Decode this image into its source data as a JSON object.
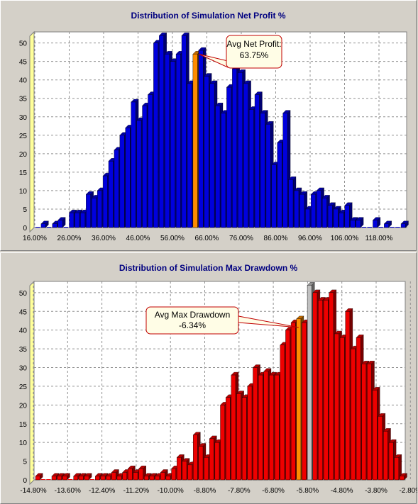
{
  "chart_data": [
    {
      "type": "bar",
      "title": "Distribution of Simulation Net Profit %",
      "xlabel": "",
      "ylabel": "",
      "ylim": [
        0,
        53
      ],
      "yticks": [
        "0",
        "5",
        "10",
        "15",
        "20",
        "25",
        "30",
        "35",
        "40",
        "45",
        "50"
      ],
      "xticks": [
        "16.00%",
        "26.00%",
        "36.00%",
        "46.00%",
        "56.00%",
        "66.00%",
        "76.00%",
        "86.00%",
        "96.00%",
        "106.00%",
        "118.00%"
      ],
      "values": [
        0,
        1,
        0,
        1,
        2,
        0,
        4,
        4,
        4,
        9,
        8,
        10,
        14,
        18,
        21,
        25,
        27,
        34,
        29,
        33,
        36,
        50,
        52,
        47,
        45,
        47,
        52,
        39,
        47,
        48,
        41,
        39,
        33,
        31,
        38,
        43,
        42,
        39,
        32,
        36,
        31,
        28,
        17,
        23,
        31,
        13,
        10,
        9,
        5,
        9,
        10,
        8,
        6,
        5,
        4,
        6,
        2,
        2,
        0,
        0,
        2,
        0,
        1,
        0,
        0,
        1
      ],
      "bar_color": "#0000dd",
      "highlight_color": "#ff8c00",
      "highlight_index": 28,
      "annotation": {
        "line1": "Avg Net Profit:",
        "line2": "63.75%"
      },
      "grid": true
    },
    {
      "type": "bar",
      "title": "Distribution of Simulation Max Drawdown %",
      "xlabel": "",
      "ylabel": "",
      "ylim": [
        0,
        53
      ],
      "yticks": [
        "0",
        "5",
        "10",
        "15",
        "20",
        "25",
        "30",
        "35",
        "40",
        "45",
        "50"
      ],
      "xticks": [
        "-14.80%",
        "-13.60%",
        "-12.40%",
        "-11.20%",
        "-10.00%",
        "-8.80%",
        "-7.80%",
        "-6.80%",
        "-5.80%",
        "-4.80%",
        "-3.80%",
        "-2.80%"
      ],
      "values": [
        1,
        0,
        0,
        1,
        1,
        1,
        0,
        1,
        1,
        1,
        0,
        1,
        1,
        1,
        2,
        1,
        2,
        3,
        2,
        3,
        1,
        1,
        1,
        2,
        1,
        3,
        6,
        5,
        4,
        12,
        9,
        6,
        11,
        10,
        20,
        22,
        28,
        23,
        22,
        25,
        30,
        28,
        29,
        28,
        28,
        36,
        40,
        42,
        43,
        42,
        52,
        50,
        48,
        48,
        50,
        39,
        38,
        45,
        35,
        38,
        31,
        31,
        24,
        17,
        13,
        10,
        6,
        1
      ],
      "bar_color": "#ee0000",
      "highlight_color": "#ff8c00",
      "highlight_index": 48,
      "special_color": "#c0c0c0",
      "special_index": 50,
      "annotation": {
        "line1": "Avg Max Drawdown",
        "line2": "-6.34%"
      },
      "grid": true
    }
  ]
}
